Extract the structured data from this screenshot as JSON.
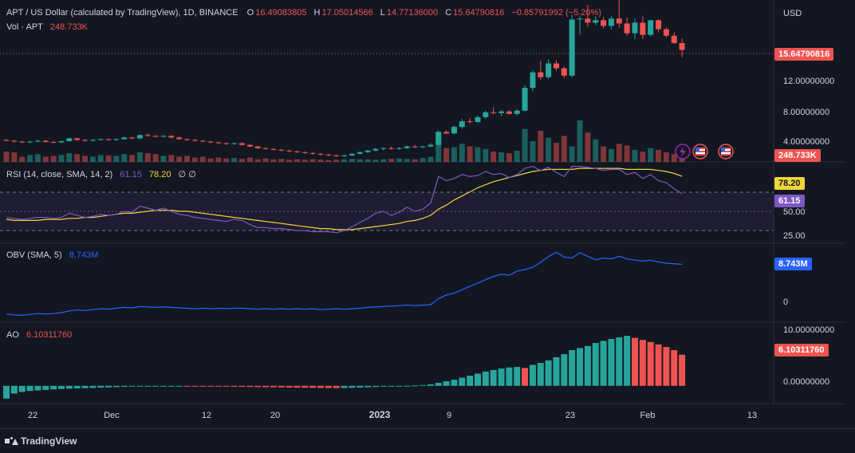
{
  "header": {
    "symbol": "APT / US Dollar (calculated by TradingView), 1D, BINANCE",
    "o_label": "O",
    "o_value": "16.49083805",
    "h_label": "H",
    "h_value": "17.05014566",
    "l_label": "L",
    "l_value": "14.77136000",
    "c_label": "C",
    "c_value": "15.64790816",
    "change": "−0.85791992 (−5.20%)",
    "vol_label": "Vol · APT",
    "vol_value": "248.733K",
    "currency": "USD"
  },
  "price_axis": {
    "ticks": [
      "12.00000000",
      "8.00000000",
      "4.00000000"
    ],
    "last_price_tag": "15.64790816",
    "volume_tag": "248.733K"
  },
  "rsi": {
    "legend": "RSI (14, close, SMA, 14, 2)",
    "rsi_value": "61.15",
    "sma_value": "78.20",
    "extra": "∅ ∅",
    "tag_sma": "78.20",
    "tag_rsi": "61.15",
    "ticks": [
      "50.00",
      "25.00"
    ]
  },
  "obv": {
    "legend": "OBV (SMA, 5)",
    "value": "8.743M",
    "tag": "8.743M",
    "tick_zero": "0"
  },
  "ao": {
    "legend": "AO",
    "value": "6.10311760",
    "tag": "6.10311760",
    "ticks": [
      "10.00000000",
      "0.00000000"
    ]
  },
  "time_axis": [
    "22",
    "Dec",
    "12",
    "20",
    "2023",
    "9",
    "23",
    "Feb",
    "13"
  ],
  "footer": {
    "brand": "TradingView"
  },
  "colors": {
    "up": "#26a69a",
    "down": "#ef5350",
    "rsi": "#7e57c2",
    "rsi_sma": "#f2d43b",
    "obv": "#2962ff",
    "bg": "#131722"
  },
  "chart_data": [
    {
      "type": "candlestick",
      "title": "APT / US Dollar (calculated by TradingView), 1D, BINANCE",
      "ylabel": "USD",
      "ylim": [
        2.2,
        21
      ],
      "candles": [
        [
          4.6,
          4.7,
          4.4,
          4.5
        ],
        [
          4.5,
          4.6,
          4.3,
          4.4
        ],
        [
          4.4,
          4.5,
          4.2,
          4.3
        ],
        [
          4.3,
          4.5,
          4.2,
          4.4
        ],
        [
          4.4,
          4.6,
          4.3,
          4.5
        ],
        [
          4.5,
          4.6,
          4.3,
          4.35
        ],
        [
          4.35,
          4.5,
          4.2,
          4.3
        ],
        [
          4.3,
          4.5,
          4.2,
          4.45
        ],
        [
          4.45,
          4.9,
          4.4,
          4.8
        ],
        [
          4.8,
          4.9,
          4.5,
          4.6
        ],
        [
          4.6,
          4.7,
          4.4,
          4.5
        ],
        [
          4.5,
          4.7,
          4.4,
          4.6
        ],
        [
          4.6,
          4.8,
          4.5,
          4.7
        ],
        [
          4.7,
          4.8,
          4.5,
          4.6
        ],
        [
          4.6,
          4.8,
          4.5,
          4.7
        ],
        [
          4.7,
          5.0,
          4.6,
          4.9
        ],
        [
          4.9,
          5.0,
          4.7,
          4.8
        ],
        [
          4.8,
          5.3,
          4.7,
          5.2
        ],
        [
          5.2,
          5.4,
          5.0,
          5.1
        ],
        [
          5.1,
          5.2,
          4.9,
          5.0
        ],
        [
          5.0,
          5.2,
          4.9,
          5.1
        ],
        [
          5.1,
          5.2,
          4.8,
          4.9
        ],
        [
          4.9,
          5.0,
          4.6,
          4.7
        ],
        [
          4.7,
          4.8,
          4.5,
          4.6
        ],
        [
          4.6,
          4.7,
          4.4,
          4.5
        ],
        [
          4.5,
          4.6,
          4.3,
          4.4
        ],
        [
          4.4,
          4.5,
          4.2,
          4.3
        ],
        [
          4.3,
          4.4,
          4.1,
          4.2
        ],
        [
          4.2,
          4.3,
          4.0,
          4.1
        ],
        [
          4.1,
          4.3,
          4.0,
          4.2
        ],
        [
          4.2,
          4.3,
          3.9,
          4.0
        ],
        [
          4.0,
          4.1,
          3.7,
          3.8
        ],
        [
          3.8,
          3.9,
          3.5,
          3.6
        ],
        [
          3.6,
          3.7,
          3.4,
          3.5
        ],
        [
          3.5,
          3.6,
          3.3,
          3.4
        ],
        [
          3.4,
          3.5,
          3.2,
          3.3
        ],
        [
          3.3,
          3.4,
          3.1,
          3.2
        ],
        [
          3.2,
          3.3,
          3.0,
          3.1
        ],
        [
          3.1,
          3.2,
          2.9,
          3.0
        ],
        [
          3.0,
          3.1,
          2.8,
          2.9
        ],
        [
          2.9,
          3.0,
          2.7,
          2.8
        ],
        [
          2.8,
          2.9,
          2.6,
          2.7
        ],
        [
          2.7,
          2.8,
          2.5,
          2.6
        ],
        [
          2.6,
          2.8,
          2.5,
          2.7
        ],
        [
          2.7,
          3.0,
          2.6,
          2.9
        ],
        [
          2.9,
          3.2,
          2.8,
          3.1
        ],
        [
          3.1,
          3.4,
          3.0,
          3.3
        ],
        [
          3.3,
          3.6,
          3.2,
          3.5
        ],
        [
          3.5,
          3.7,
          3.3,
          3.6
        ],
        [
          3.6,
          3.8,
          3.4,
          3.5
        ],
        [
          3.5,
          3.7,
          3.4,
          3.6
        ],
        [
          3.6,
          3.9,
          3.5,
          3.8
        ],
        [
          3.8,
          4.0,
          3.6,
          3.7
        ],
        [
          3.7,
          3.9,
          3.6,
          3.8
        ],
        [
          3.8,
          4.2,
          3.7,
          4.0
        ],
        [
          4.0,
          5.8,
          3.9,
          5.6
        ],
        [
          5.6,
          5.8,
          5.3,
          5.4
        ],
        [
          5.4,
          6.4,
          5.3,
          6.2
        ],
        [
          6.2,
          7.2,
          6.0,
          6.9
        ],
        [
          6.9,
          7.3,
          6.6,
          6.8
        ],
        [
          6.8,
          7.6,
          6.7,
          7.4
        ],
        [
          7.4,
          8.2,
          7.2,
          8.0
        ],
        [
          8.0,
          8.6,
          7.7,
          7.9
        ],
        [
          7.9,
          8.3,
          7.5,
          8.1
        ],
        [
          8.1,
          8.3,
          7.7,
          7.8
        ],
        [
          7.8,
          8.4,
          7.6,
          8.2
        ],
        [
          8.2,
          11.3,
          8.1,
          11.0
        ],
        [
          11.0,
          13.2,
          10.6,
          12.9
        ],
        [
          12.9,
          14.3,
          12.0,
          12.3
        ],
        [
          12.3,
          14.5,
          12.1,
          14.0
        ],
        [
          14.0,
          14.4,
          13.1,
          13.4
        ],
        [
          13.4,
          13.6,
          12.2,
          12.5
        ],
        [
          12.5,
          20.0,
          12.3,
          19.4
        ],
        [
          19.4,
          19.8,
          17.5,
          19.5
        ],
        [
          19.5,
          21.2,
          18.5,
          19.0
        ],
        [
          19.0,
          19.8,
          18.7,
          19.3
        ],
        [
          19.3,
          19.7,
          18.3,
          18.6
        ],
        [
          18.6,
          19.8,
          18.2,
          19.5
        ],
        [
          19.5,
          22.0,
          18.4,
          18.9
        ],
        [
          18.9,
          19.6,
          17.4,
          17.7
        ],
        [
          17.7,
          19.5,
          17.0,
          19.0
        ],
        [
          19.0,
          19.8,
          17.0,
          17.5
        ],
        [
          17.5,
          19.3,
          17.3,
          19.3
        ],
        [
          19.3,
          19.4,
          17.8,
          18.2
        ],
        [
          18.2,
          18.4,
          17.2,
          17.4
        ],
        [
          17.4,
          17.8,
          16.4,
          16.49
        ],
        [
          16.49,
          17.05,
          14.77,
          15.65
        ]
      ],
      "volume": [
        120,
        110,
        60,
        80,
        90,
        60,
        70,
        80,
        100,
        90,
        70,
        60,
        80,
        75,
        70,
        90,
        80,
        110,
        100,
        90,
        70,
        80,
        60,
        70,
        50,
        60,
        40,
        50,
        40,
        45,
        35,
        50,
        30,
        40,
        30,
        35,
        25,
        30,
        25,
        30,
        25,
        20,
        25,
        30,
        35,
        30,
        30,
        25,
        30,
        35,
        40,
        35,
        30,
        45,
        60,
        200,
        160,
        170,
        210,
        180,
        170,
        150,
        120,
        110,
        100,
        130,
        380,
        240,
        360,
        280,
        220,
        300,
        180,
        480,
        340,
        260,
        180,
        150,
        210,
        190,
        140,
        120,
        160,
        140,
        110,
        90,
        70
      ]
    },
    {
      "type": "line",
      "title": "RSI (14, close, SMA, 14, 2)",
      "ylim": [
        15,
        90
      ],
      "series": [
        {
          "values": [
            38,
            37,
            36,
            37,
            38,
            38,
            37,
            38,
            42,
            40,
            38,
            39,
            41,
            40,
            41,
            44,
            43,
            49,
            47,
            45,
            47,
            44,
            41,
            40,
            38,
            37,
            36,
            35,
            34,
            36,
            35,
            31,
            28,
            28,
            27,
            27,
            26,
            25,
            25,
            24,
            24,
            24,
            23,
            25,
            29,
            33,
            37,
            42,
            44,
            40,
            43,
            48,
            44,
            46,
            52,
            78,
            74,
            76,
            80,
            78,
            79,
            83,
            80,
            81,
            77,
            80,
            86,
            88,
            84,
            87,
            82,
            78,
            88,
            88,
            87,
            86,
            84,
            85,
            85,
            80,
            82,
            76,
            80,
            74,
            72,
            66,
            61.15
          ]
        },
        {
          "values": [
            36,
            35,
            35,
            35,
            35,
            36,
            36,
            36,
            37,
            37,
            38,
            38,
            39,
            40,
            41,
            42,
            42,
            43,
            44,
            45,
            45,
            45,
            44,
            44,
            43,
            42,
            41,
            40,
            39,
            38,
            37,
            36,
            35,
            34,
            33,
            32,
            31,
            30,
            29,
            28,
            27,
            27,
            26,
            26,
            26,
            27,
            28,
            29,
            30,
            31,
            32,
            34,
            35,
            37,
            40,
            46,
            50,
            55,
            59,
            63,
            67,
            70,
            73,
            75,
            77,
            79,
            81,
            83,
            84,
            85,
            85,
            85,
            85,
            86,
            86,
            86,
            86,
            86,
            86,
            85,
            85,
            85,
            85,
            84,
            83,
            81,
            78.2
          ]
        }
      ]
    },
    {
      "type": "line",
      "title": "OBV (SMA, 5)",
      "ylim": [
        -4,
        13
      ],
      "series": [
        {
          "values": [
            -2.5,
            -2.7,
            -2.8,
            -2.6,
            -2.4,
            -2.5,
            -2.4,
            -2.2,
            -1.8,
            -1.6,
            -1.7,
            -1.5,
            -1.3,
            -1.4,
            -1.2,
            -1.0,
            -1.1,
            -0.8,
            -0.9,
            -1.0,
            -0.9,
            -1.0,
            -1.1,
            -1.2,
            -1.3,
            -1.2,
            -1.3,
            -1.2,
            -1.3,
            -1.2,
            -1.2,
            -1.3,
            -1.4,
            -1.3,
            -1.4,
            -1.3,
            -1.4,
            -1.3,
            -1.4,
            -1.3,
            -1.5,
            -1.4,
            -1.3,
            -1.4,
            -1.3,
            -1.2,
            -1.0,
            -0.9,
            -0.8,
            -0.7,
            -0.6,
            -0.5,
            -0.6,
            -0.5,
            -0.4,
            1.0,
            1.8,
            2.2,
            3.0,
            3.8,
            4.5,
            5.3,
            6.0,
            6.5,
            6.3,
            7.2,
            7.6,
            8.1,
            9.2,
            10.5,
            11.5,
            10.4,
            10.2,
            11.4,
            10.6,
            9.8,
            10.2,
            10.0,
            10.6,
            10.0,
            9.7,
            9.5,
            9.7,
            9.3,
            9.0,
            8.9,
            8.743
          ]
        }
      ]
    },
    {
      "type": "bar",
      "title": "AO",
      "ylim": [
        -3,
        12
      ],
      "values": [
        -2.5,
        -1.5,
        -1.2,
        -1.0,
        -0.9,
        -0.8,
        -0.7,
        -0.6,
        -0.55,
        -0.5,
        -0.45,
        -0.4,
        -0.35,
        -0.3,
        -0.25,
        -0.2,
        -0.15,
        -0.12,
        -0.1,
        -0.08,
        -0.07,
        -0.06,
        -0.05,
        -0.06,
        -0.08,
        -0.1,
        -0.12,
        -0.14,
        -0.16,
        -0.18,
        -0.2,
        -0.22,
        -0.24,
        -0.26,
        -0.28,
        -0.3,
        -0.32,
        -0.34,
        -0.36,
        -0.38,
        -0.4,
        -0.42,
        -0.44,
        -0.42,
        -0.38,
        -0.34,
        -0.28,
        -0.22,
        -0.16,
        -0.1,
        -0.04,
        0.02,
        0.08,
        0.15,
        0.3,
        0.6,
        0.9,
        1.2,
        1.6,
        2.0,
        2.4,
        2.8,
        3.1,
        3.4,
        3.6,
        3.7,
        3.5,
        4.1,
        4.5,
        5.0,
        5.6,
        6.2,
        7.0,
        7.4,
        7.8,
        8.4,
        8.8,
        9.2,
        9.5,
        9.8,
        9.4,
        9.0,
        8.6,
        8.1,
        7.6,
        7.0,
        6.1031176
      ]
    }
  ]
}
